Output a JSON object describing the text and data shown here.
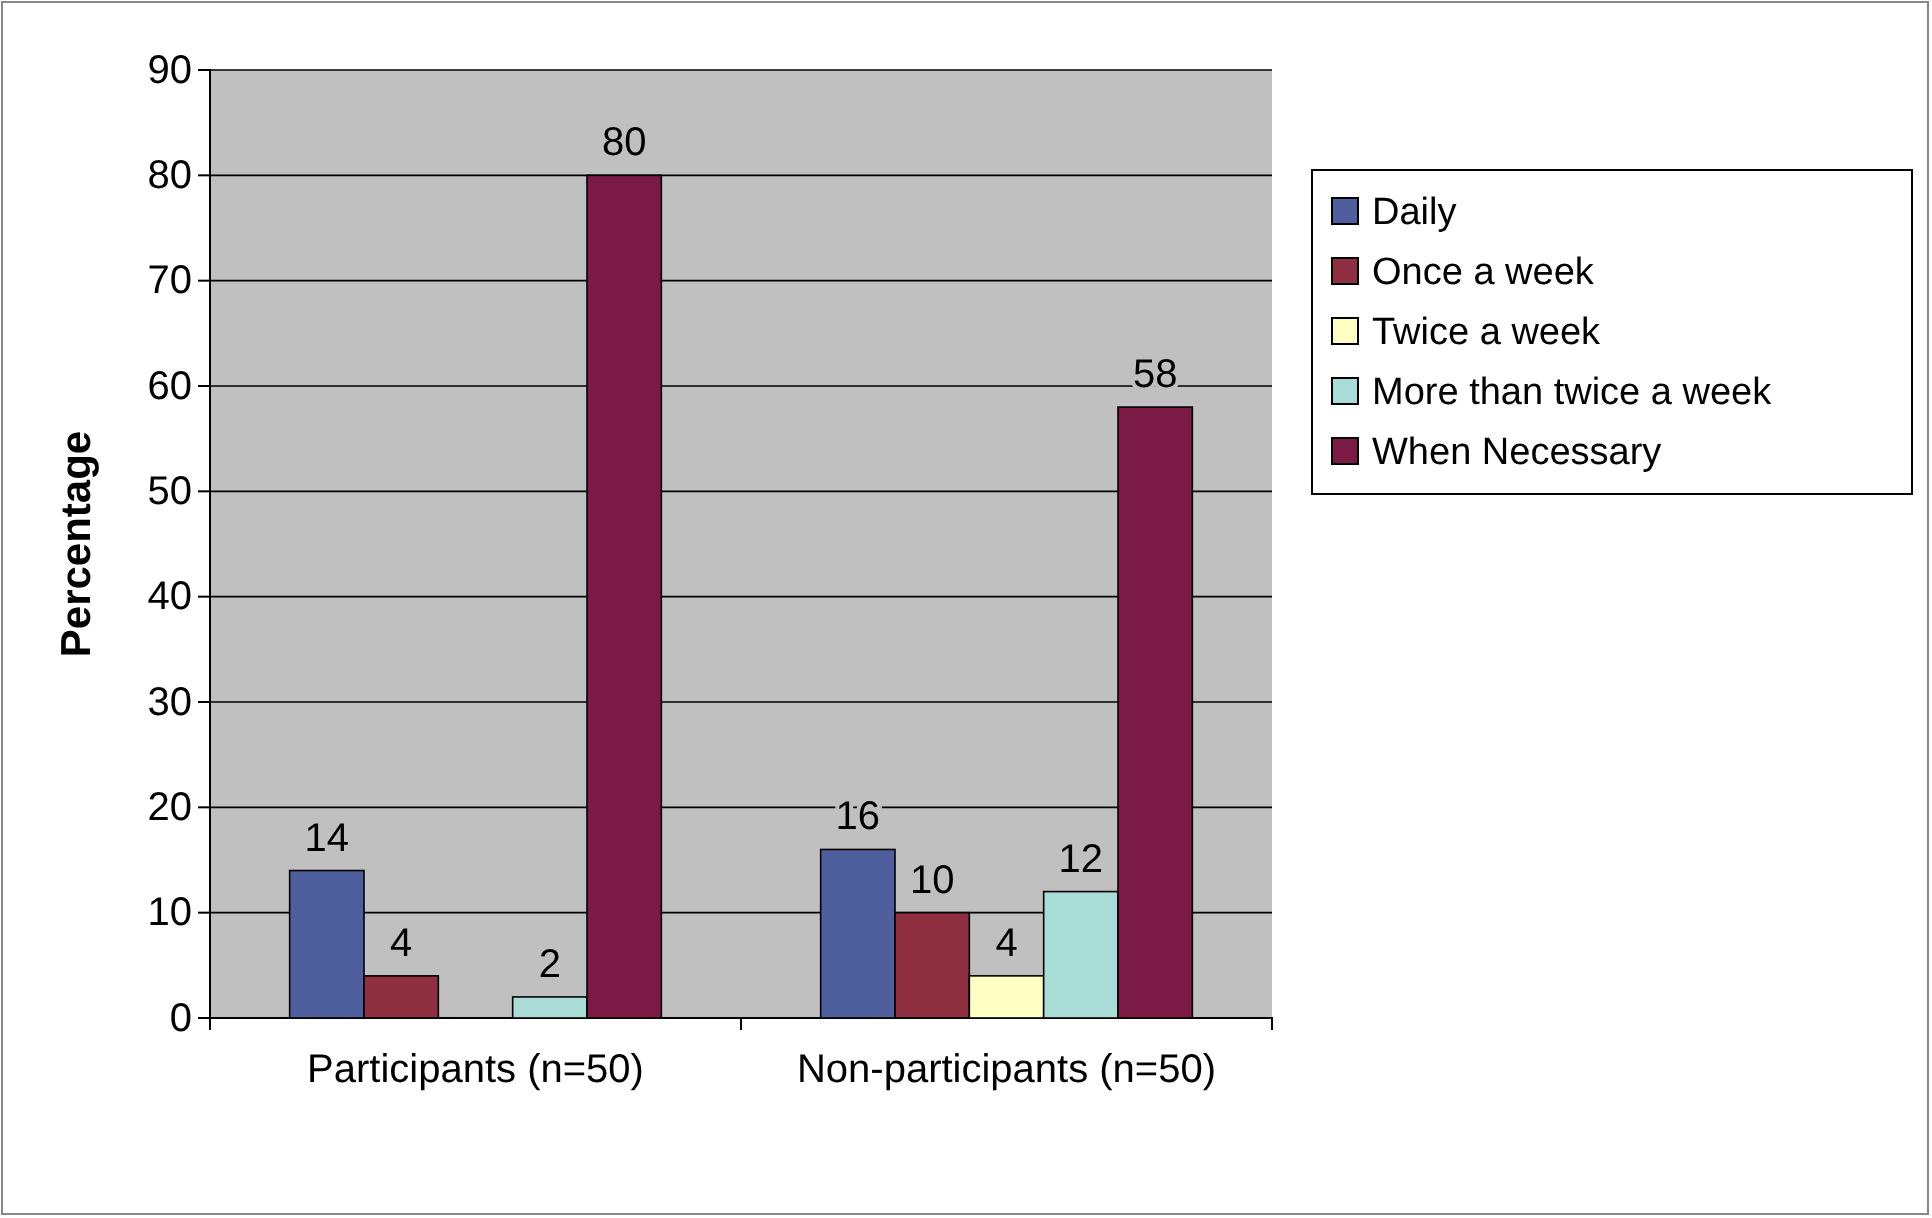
{
  "chart_data": {
    "type": "bar",
    "ylabel": "Percentage",
    "categories": [
      "Participants (n=50)",
      "Non-participants (n=50)"
    ],
    "series": [
      {
        "name": "Daily",
        "color": "#4f5f9e",
        "values": [
          14,
          16
        ],
        "value_labels": [
          "14",
          "16"
        ]
      },
      {
        "name": "Once a week",
        "color": "#8e2f42",
        "values": [
          4,
          10
        ],
        "value_labels": [
          "4",
          "10"
        ]
      },
      {
        "name": "Twice a week",
        "color": "#ffffc4",
        "values": [
          0,
          4
        ],
        "value_labels": [
          null,
          "4"
        ]
      },
      {
        "name": "More than twice a week",
        "color": "#a9dcd6",
        "values": [
          2,
          12
        ],
        "value_labels": [
          "2",
          "12"
        ]
      },
      {
        "name": "When Necessary",
        "color": "#7b1a44",
        "values": [
          80,
          58
        ],
        "value_labels": [
          "80",
          "58"
        ]
      }
    ],
    "ylim": [
      0,
      90
    ],
    "yticks": [
      0,
      10,
      20,
      30,
      40,
      50,
      60,
      70,
      80,
      90
    ],
    "grid": "y",
    "legend": "right"
  }
}
